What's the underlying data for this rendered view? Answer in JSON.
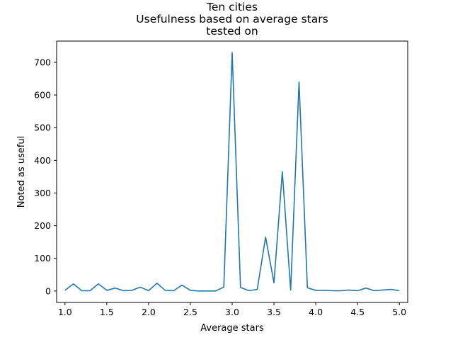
{
  "chart_data": {
    "type": "line",
    "title": [
      "Ten cities",
      "Usefulness based on average stars",
      "tested on"
    ],
    "xlabel": "Average stars",
    "ylabel": "Noted as useful",
    "xlim": [
      0.9,
      5.1
    ],
    "ylim": [
      -35,
      765
    ],
    "x_ticks": [
      1.0,
      1.5,
      2.0,
      2.5,
      3.0,
      3.5,
      4.0,
      4.5,
      5.0
    ],
    "x_tick_labels": [
      "1.0",
      "1.5",
      "2.0",
      "2.5",
      "3.0",
      "3.5",
      "4.0",
      "4.5",
      "5.0"
    ],
    "y_ticks": [
      0,
      100,
      200,
      300,
      400,
      500,
      600,
      700
    ],
    "y_tick_labels": [
      "0",
      "100",
      "200",
      "300",
      "400",
      "500",
      "600",
      "700"
    ],
    "grid": false,
    "series": [
      {
        "color": "#1f77b4",
        "x": [
          1.0,
          1.1,
          1.2,
          1.3,
          1.4,
          1.5,
          1.6,
          1.7,
          1.8,
          1.9,
          2.0,
          2.1,
          2.2,
          2.3,
          2.4,
          2.5,
          2.6,
          2.7,
          2.8,
          2.9,
          3.0,
          3.1,
          3.2,
          3.3,
          3.4,
          3.5,
          3.6,
          3.7,
          3.8,
          3.9,
          4.0,
          4.1,
          4.2,
          4.3,
          4.4,
          4.5,
          4.6,
          4.7,
          4.8,
          4.9,
          5.0
        ],
        "values": [
          2,
          22,
          1,
          1,
          22,
          2,
          9,
          1,
          2,
          12,
          1,
          24,
          2,
          1,
          18,
          2,
          0,
          0,
          0,
          12,
          730,
          11,
          1,
          5,
          165,
          25,
          365,
          3,
          640,
          10,
          2,
          2,
          1,
          1,
          3,
          1,
          9,
          1,
          3,
          5,
          1
        ]
      }
    ]
  }
}
